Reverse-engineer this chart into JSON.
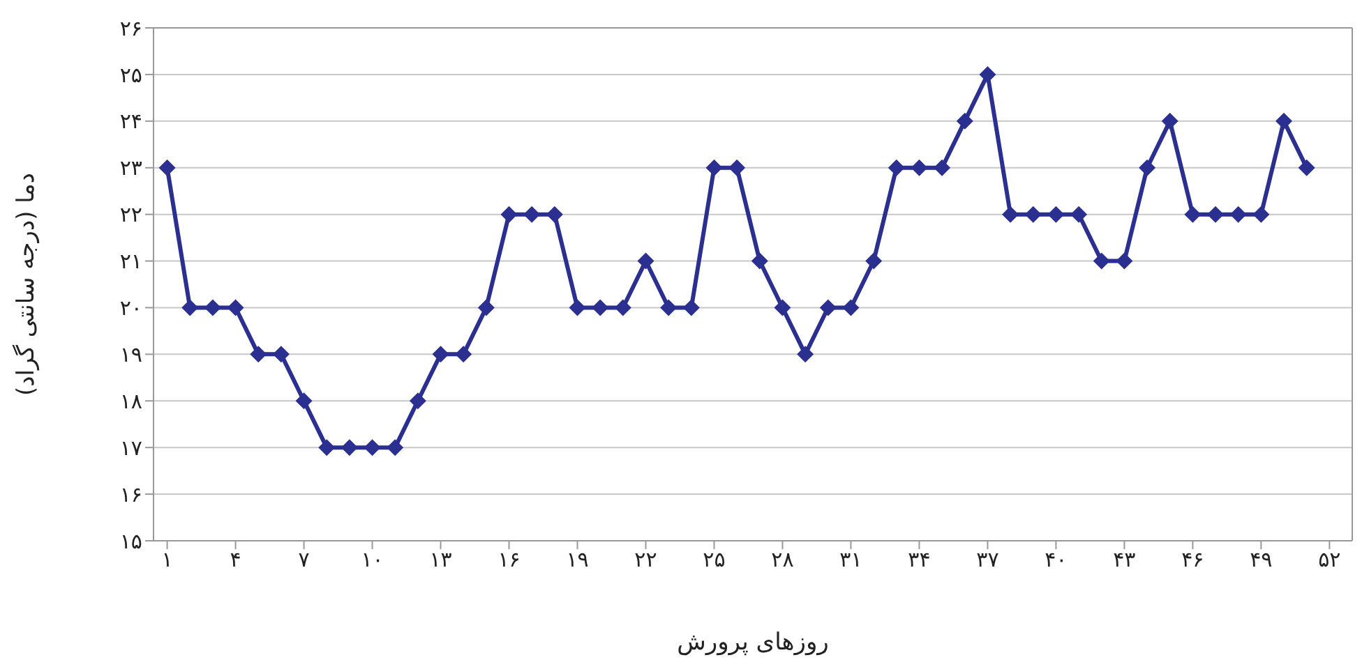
{
  "chart_data": {
    "type": "line",
    "xlabel": "روزهای پرورش",
    "ylabel": "دما (درجه سانتی گراد)",
    "x": [
      1,
      2,
      3,
      4,
      5,
      6,
      7,
      8,
      9,
      10,
      11,
      12,
      13,
      14,
      15,
      16,
      17,
      18,
      19,
      20,
      21,
      22,
      23,
      24,
      25,
      26,
      27,
      28,
      29,
      30,
      31,
      32,
      33,
      34,
      35,
      36,
      37,
      38,
      39,
      40,
      41,
      42,
      43,
      44,
      45,
      46,
      47,
      48,
      49,
      50,
      51
    ],
    "series": [
      {
        "color": "#2b2f8f",
        "values": [
          23,
          20,
          20,
          20,
          19,
          19,
          18,
          17,
          17,
          17,
          17,
          18,
          19,
          19,
          20,
          22,
          22,
          22,
          20,
          20,
          20,
          21,
          20,
          20,
          23,
          23,
          21,
          20,
          19,
          20,
          20,
          21,
          23,
          23,
          23,
          24,
          25,
          22,
          22,
          22,
          22,
          21,
          21,
          23,
          24,
          22,
          22,
          22,
          22,
          24,
          23
        ]
      }
    ],
    "xlim": [
      0.4,
      53
    ],
    "xticks": [
      {
        "value": 1,
        "label": "۱"
      },
      {
        "value": 4,
        "label": "۴"
      },
      {
        "value": 7,
        "label": "۷"
      },
      {
        "value": 10,
        "label": "۱۰"
      },
      {
        "value": 13,
        "label": "۱۳"
      },
      {
        "value": 16,
        "label": "۱۶"
      },
      {
        "value": 19,
        "label": "۱۹"
      },
      {
        "value": 22,
        "label": "۲۲"
      },
      {
        "value": 25,
        "label": "۲۵"
      },
      {
        "value": 28,
        "label": "۲۸"
      },
      {
        "value": 31,
        "label": "۳۱"
      },
      {
        "value": 34,
        "label": "۳۴"
      },
      {
        "value": 37,
        "label": "۳۷"
      },
      {
        "value": 40,
        "label": "۴۰"
      },
      {
        "value": 43,
        "label": "۴۳"
      },
      {
        "value": 46,
        "label": "۴۶"
      },
      {
        "value": 49,
        "label": "۴۹"
      },
      {
        "value": 52,
        "label": "۵۲"
      }
    ],
    "ylim": [
      15,
      26
    ],
    "yticks": [
      {
        "value": 15,
        "label": "۱۵"
      },
      {
        "value": 16,
        "label": "۱۶"
      },
      {
        "value": 17,
        "label": "۱۷"
      },
      {
        "value": 18,
        "label": "۱۸"
      },
      {
        "value": 19,
        "label": "۱۹"
      },
      {
        "value": 20,
        "label": "۲۰"
      },
      {
        "value": 21,
        "label": "۲۱"
      },
      {
        "value": 22,
        "label": "۲۲"
      },
      {
        "value": 23,
        "label": "۲۳"
      },
      {
        "value": 24,
        "label": "۲۴"
      },
      {
        "value": 25,
        "label": "۲۵"
      },
      {
        "value": 26,
        "label": "۲۶"
      }
    ],
    "grid": "y",
    "marker": "diamond",
    "line_style": "solid",
    "legend": false
  }
}
